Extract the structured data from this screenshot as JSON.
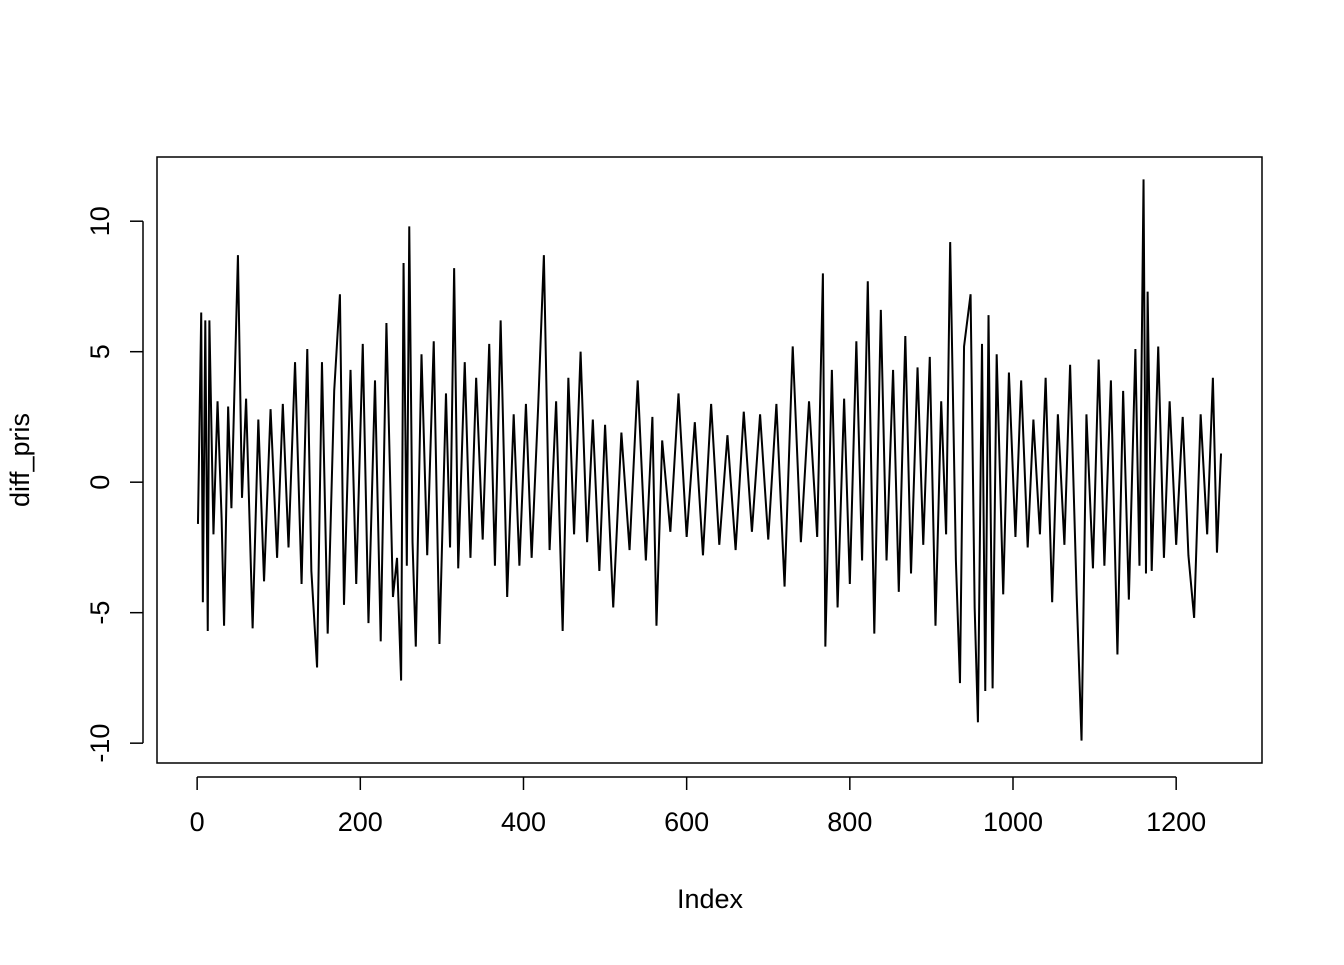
{
  "chart_data": {
    "type": "line",
    "xlabel": "Index",
    "ylabel": "diff_pris",
    "x": [
      1,
      5,
      7,
      10,
      13,
      15,
      20,
      25,
      30,
      33,
      38,
      42,
      50,
      55,
      60,
      68,
      75,
      82,
      90,
      98,
      105,
      112,
      120,
      128,
      135,
      140,
      147,
      153,
      160,
      168,
      175,
      180,
      188,
      195,
      203,
      210,
      218,
      225,
      232,
      240,
      245,
      250,
      253,
      257,
      260,
      264,
      268,
      275,
      282,
      290,
      297,
      305,
      310,
      315,
      320,
      328,
      335,
      342,
      350,
      358,
      365,
      372,
      380,
      388,
      395,
      403,
      410,
      418,
      425,
      432,
      440,
      448,
      455,
      462,
      470,
      478,
      485,
      493,
      500,
      510,
      520,
      530,
      540,
      550,
      558,
      563,
      570,
      580,
      590,
      600,
      610,
      620,
      630,
      640,
      650,
      660,
      670,
      680,
      690,
      700,
      710,
      720,
      730,
      740,
      750,
      760,
      767,
      770,
      778,
      785,
      793,
      800,
      808,
      815,
      822,
      830,
      838,
      845,
      853,
      860,
      868,
      875,
      883,
      890,
      898,
      905,
      912,
      918,
      923,
      930,
      935,
      940,
      948,
      953,
      957,
      962,
      966,
      970,
      975,
      980,
      988,
      995,
      1003,
      1010,
      1018,
      1025,
      1033,
      1040,
      1048,
      1055,
      1063,
      1070,
      1078,
      1084,
      1090,
      1098,
      1105,
      1112,
      1120,
      1128,
      1135,
      1142,
      1150,
      1155,
      1160,
      1163,
      1165,
      1170,
      1178,
      1185,
      1192,
      1200,
      1208,
      1215,
      1222,
      1230,
      1238,
      1245,
      1250,
      1255
    ],
    "series": [
      {
        "color": "#000000",
        "values": [
          -1.6,
          6.5,
          -4.6,
          6.2,
          -5.7,
          6.2,
          -2.0,
          3.1,
          -1.4,
          -5.5,
          2.9,
          -1.0,
          8.7,
          -0.6,
          3.2,
          -5.6,
          2.4,
          -3.8,
          2.8,
          -2.9,
          3.0,
          -2.5,
          4.6,
          -3.9,
          5.1,
          -3.4,
          -7.1,
          4.6,
          -5.8,
          3.5,
          7.2,
          -4.7,
          4.3,
          -3.9,
          5.3,
          -5.4,
          3.9,
          -6.1,
          6.1,
          -4.4,
          -2.9,
          -7.6,
          8.4,
          -3.2,
          9.8,
          -2.3,
          -6.3,
          4.9,
          -2.8,
          5.4,
          -6.2,
          3.4,
          -2.5,
          8.2,
          -3.3,
          4.6,
          -2.9,
          4.0,
          -2.2,
          5.3,
          -3.2,
          6.2,
          -4.4,
          2.6,
          -3.2,
          3.0,
          -2.9,
          2.9,
          8.7,
          -2.6,
          3.1,
          -5.7,
          4.0,
          -2.0,
          5.0,
          -2.3,
          2.4,
          -3.4,
          2.2,
          -4.8,
          1.9,
          -2.6,
          3.9,
          -3.0,
          2.5,
          -5.5,
          1.6,
          -1.9,
          3.4,
          -2.1,
          2.3,
          -2.8,
          3.0,
          -2.4,
          1.8,
          -2.6,
          2.7,
          -1.9,
          2.6,
          -2.2,
          3.0,
          -4.0,
          5.2,
          -2.3,
          3.1,
          -2.1,
          8.0,
          -6.3,
          4.3,
          -4.8,
          3.2,
          -3.9,
          5.4,
          -3.0,
          7.7,
          -5.8,
          6.6,
          -3.0,
          4.3,
          -4.2,
          5.6,
          -3.5,
          4.4,
          -2.4,
          4.8,
          -5.5,
          3.1,
          -2.0,
          9.2,
          -3.0,
          -7.7,
          5.2,
          7.2,
          -4.8,
          -9.2,
          5.3,
          -8.0,
          6.4,
          -7.9,
          4.9,
          -4.3,
          4.2,
          -2.1,
          3.9,
          -2.5,
          2.4,
          -2.0,
          4.0,
          -4.6,
          2.6,
          -2.4,
          4.5,
          -4.3,
          -9.9,
          2.6,
          -3.3,
          4.7,
          -3.2,
          3.9,
          -6.6,
          3.5,
          -4.5,
          5.1,
          -3.2,
          11.6,
          -3.5,
          7.3,
          -3.4,
          5.2,
          -2.9,
          3.1,
          -2.4,
          2.5,
          -2.8,
          -5.2,
          2.6,
          -2.0,
          4.0,
          -2.7,
          1.1
        ]
      }
    ],
    "xlim": [
      -49.2,
      1305.2
    ],
    "ylim": [
      -10.76,
      12.46
    ],
    "xticks": [
      0,
      200,
      400,
      600,
      800,
      1000,
      1200
    ],
    "yticks": [
      -10,
      -5,
      0,
      5,
      10
    ]
  }
}
